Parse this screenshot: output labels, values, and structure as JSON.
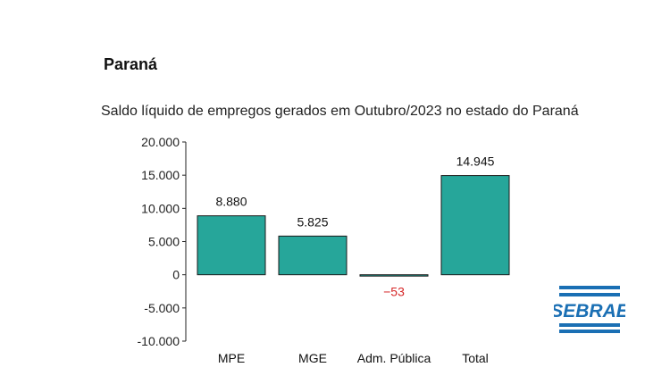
{
  "header": {
    "region": "Paraná",
    "subtitle": "Saldo líquido de empregos gerados em Outubro/2023 no estado do Paraná"
  },
  "logo": {
    "text": "SEBRAE",
    "color": "#1a6fb4"
  },
  "chart_data": {
    "type": "bar",
    "categories": [
      "MPE",
      "MGE",
      "Adm. Pública",
      "Total"
    ],
    "values": [
      8880,
      5825,
      -53,
      14945
    ],
    "value_labels": [
      "8.880",
      "5.825",
      "−53",
      "14.945"
    ],
    "negative_label_color": "#d62728",
    "bar_color": "#26a69a",
    "ylim": [
      -10000,
      20000
    ],
    "yticks": [
      20000,
      15000,
      10000,
      5000,
      0,
      -5000,
      -10000
    ],
    "ytick_labels": [
      "20.000",
      "15.000",
      "10.000",
      "5.000",
      "0",
      "-5.000",
      "-10.000"
    ],
    "grid": false
  }
}
